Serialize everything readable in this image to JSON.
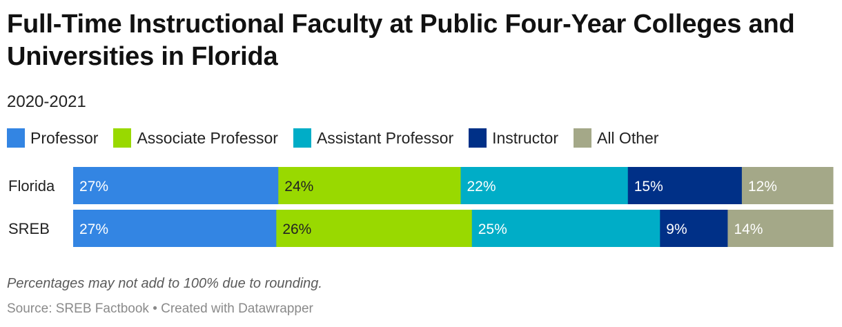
{
  "title": "Full-Time Instructional Faculty at Public Four-Year Colleges and Universities in Florida",
  "subtitle": "2020-2021",
  "note": "Percentages may not add to 100% due to rounding.",
  "source": "Source: SREB Factbook • Created with Datawrapper",
  "chart_data": {
    "type": "bar",
    "orientation": "horizontal",
    "stacked": true,
    "categories": [
      "Florida",
      "SREB"
    ],
    "series": [
      {
        "name": "Professor",
        "color": "#3385e3",
        "values": [
          27,
          27
        ],
        "labels": [
          "27%",
          "27%"
        ]
      },
      {
        "name": "Associate Professor",
        "color": "#99d900",
        "values": [
          24,
          26
        ],
        "labels": [
          "24%",
          "26%"
        ]
      },
      {
        "name": "Assistant Professor",
        "color": "#00adc7",
        "values": [
          22,
          25
        ],
        "labels": [
          "22%",
          "25%"
        ]
      },
      {
        "name": "Instructor",
        "color": "#003087",
        "values": [
          15,
          9
        ],
        "labels": [
          "15%",
          "9%"
        ]
      },
      {
        "name": "All Other",
        "color": "#a4a888",
        "values": [
          12,
          14
        ],
        "labels": [
          "12%",
          "14%"
        ]
      }
    ],
    "value_label_colors": {
      "#3385e3": "#ffffff",
      "#99d900": "#222222",
      "#00adc7": "#ffffff",
      "#003087": "#ffffff",
      "#a4a888": "#ffffff"
    },
    "legend_position": "top",
    "grid": false
  }
}
